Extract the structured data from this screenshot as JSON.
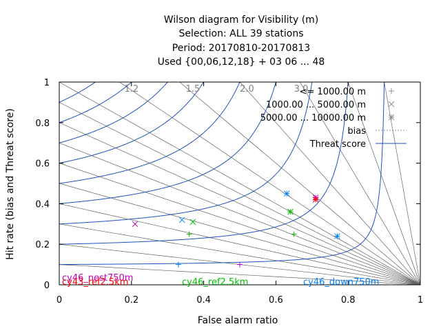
{
  "chart_data": {
    "type": "scatter",
    "title_lines": [
      "Wilson diagram  for Visibility (m)",
      "Selection: ALL      39 stations",
      "Period: 20170810-20170813",
      "Used {00,06,12,18} + 03 06 ... 48"
    ],
    "xlabel": "False alarm ratio",
    "ylabel": "Hit rate (bias and Threat score)",
    "xlim": [
      0,
      1
    ],
    "ylim": [
      0,
      1
    ],
    "xticks": [
      "0",
      "0.2",
      "0.4",
      "0.6",
      "0.8",
      "1"
    ],
    "yticks": [
      "0",
      "0.2",
      "0.4",
      "0.6",
      "0.8",
      "1"
    ],
    "bias_labels": [
      "1.2",
      "1.5",
      "2.0",
      "3.0"
    ],
    "legend": {
      "position": "top-right",
      "entries": [
        {
          "label": "<= 1000.00 m",
          "marker": "plus"
        },
        {
          "label": "1000.00 ... 5000.00 m",
          "marker": "cross"
        },
        {
          "label": "5000.00 ... 10000.00 m",
          "marker": "star"
        },
        {
          "label": "bias",
          "style": "dotted"
        },
        {
          "label": "Threat score",
          "style": "line"
        }
      ]
    },
    "series": [
      {
        "name": "cy46_nest750m",
        "color": "#c000c0",
        "points": [
          {
            "x": 0.5,
            "y": 0.1,
            "marker": "plus"
          },
          {
            "x": 0.21,
            "y": 0.3,
            "marker": "cross"
          },
          {
            "x": 0.71,
            "y": 0.43,
            "marker": "star"
          }
        ]
      },
      {
        "name": "cy43_ref2.5km",
        "color": "#ff0000",
        "points": [
          {
            "x": 0.71,
            "y": 0.42,
            "marker": "star"
          }
        ]
      },
      {
        "name": "cy46_ref2.5km",
        "color": "#00c000",
        "points": [
          {
            "x": 0.36,
            "y": 0.25,
            "marker": "plus"
          },
          {
            "x": 0.65,
            "y": 0.25,
            "marker": "plus"
          },
          {
            "x": 0.37,
            "y": 0.31,
            "marker": "cross"
          },
          {
            "x": 0.64,
            "y": 0.36,
            "marker": "star"
          }
        ]
      },
      {
        "name": "cy46_down750m",
        "color": "#0080ff",
        "points": [
          {
            "x": 0.33,
            "y": 0.1,
            "marker": "plus"
          },
          {
            "x": 0.34,
            "y": 0.32,
            "marker": "cross"
          },
          {
            "x": 0.63,
            "y": 0.45,
            "marker": "star"
          },
          {
            "x": 0.77,
            "y": 0.24,
            "marker": "star"
          }
        ]
      }
    ],
    "colors": {
      "ts_curve": "#2050c0",
      "bias_line": "#a0a0a0",
      "axes": "#000000"
    }
  }
}
